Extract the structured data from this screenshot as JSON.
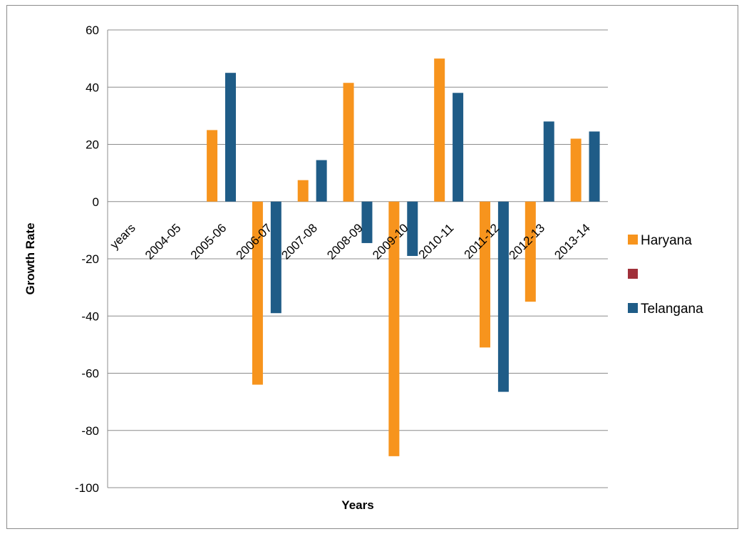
{
  "chart_data": {
    "type": "bar",
    "xlabel": "Years",
    "ylabel": "Growth Rate",
    "ylim": [
      -100,
      60
    ],
    "yticks": [
      60,
      40,
      20,
      0,
      -20,
      -40,
      -60,
      -80,
      -100
    ],
    "categories": [
      "years",
      "2004-05",
      "2005-06",
      "2006-07",
      "2007-08",
      "2008-09",
      "2009-10",
      "2010-11",
      "2011-12",
      "2012-13",
      "2013-14"
    ],
    "grid": "horizontal",
    "legend_position": "right",
    "series": [
      {
        "name": "Haryana",
        "color": "#F7941D",
        "values": [
          null,
          null,
          25,
          -64,
          7.5,
          41.5,
          -89,
          50,
          -51,
          -35,
          22
        ]
      },
      {
        "name": "",
        "color": "#A0303A",
        "values": [
          null,
          null,
          null,
          null,
          null,
          null,
          null,
          null,
          null,
          null,
          null
        ]
      },
      {
        "name": "Telangana",
        "color": "#1F5C87",
        "values": [
          null,
          null,
          45,
          -39,
          14.5,
          -14.5,
          -19,
          38,
          -66.5,
          28,
          24.5
        ]
      }
    ]
  }
}
